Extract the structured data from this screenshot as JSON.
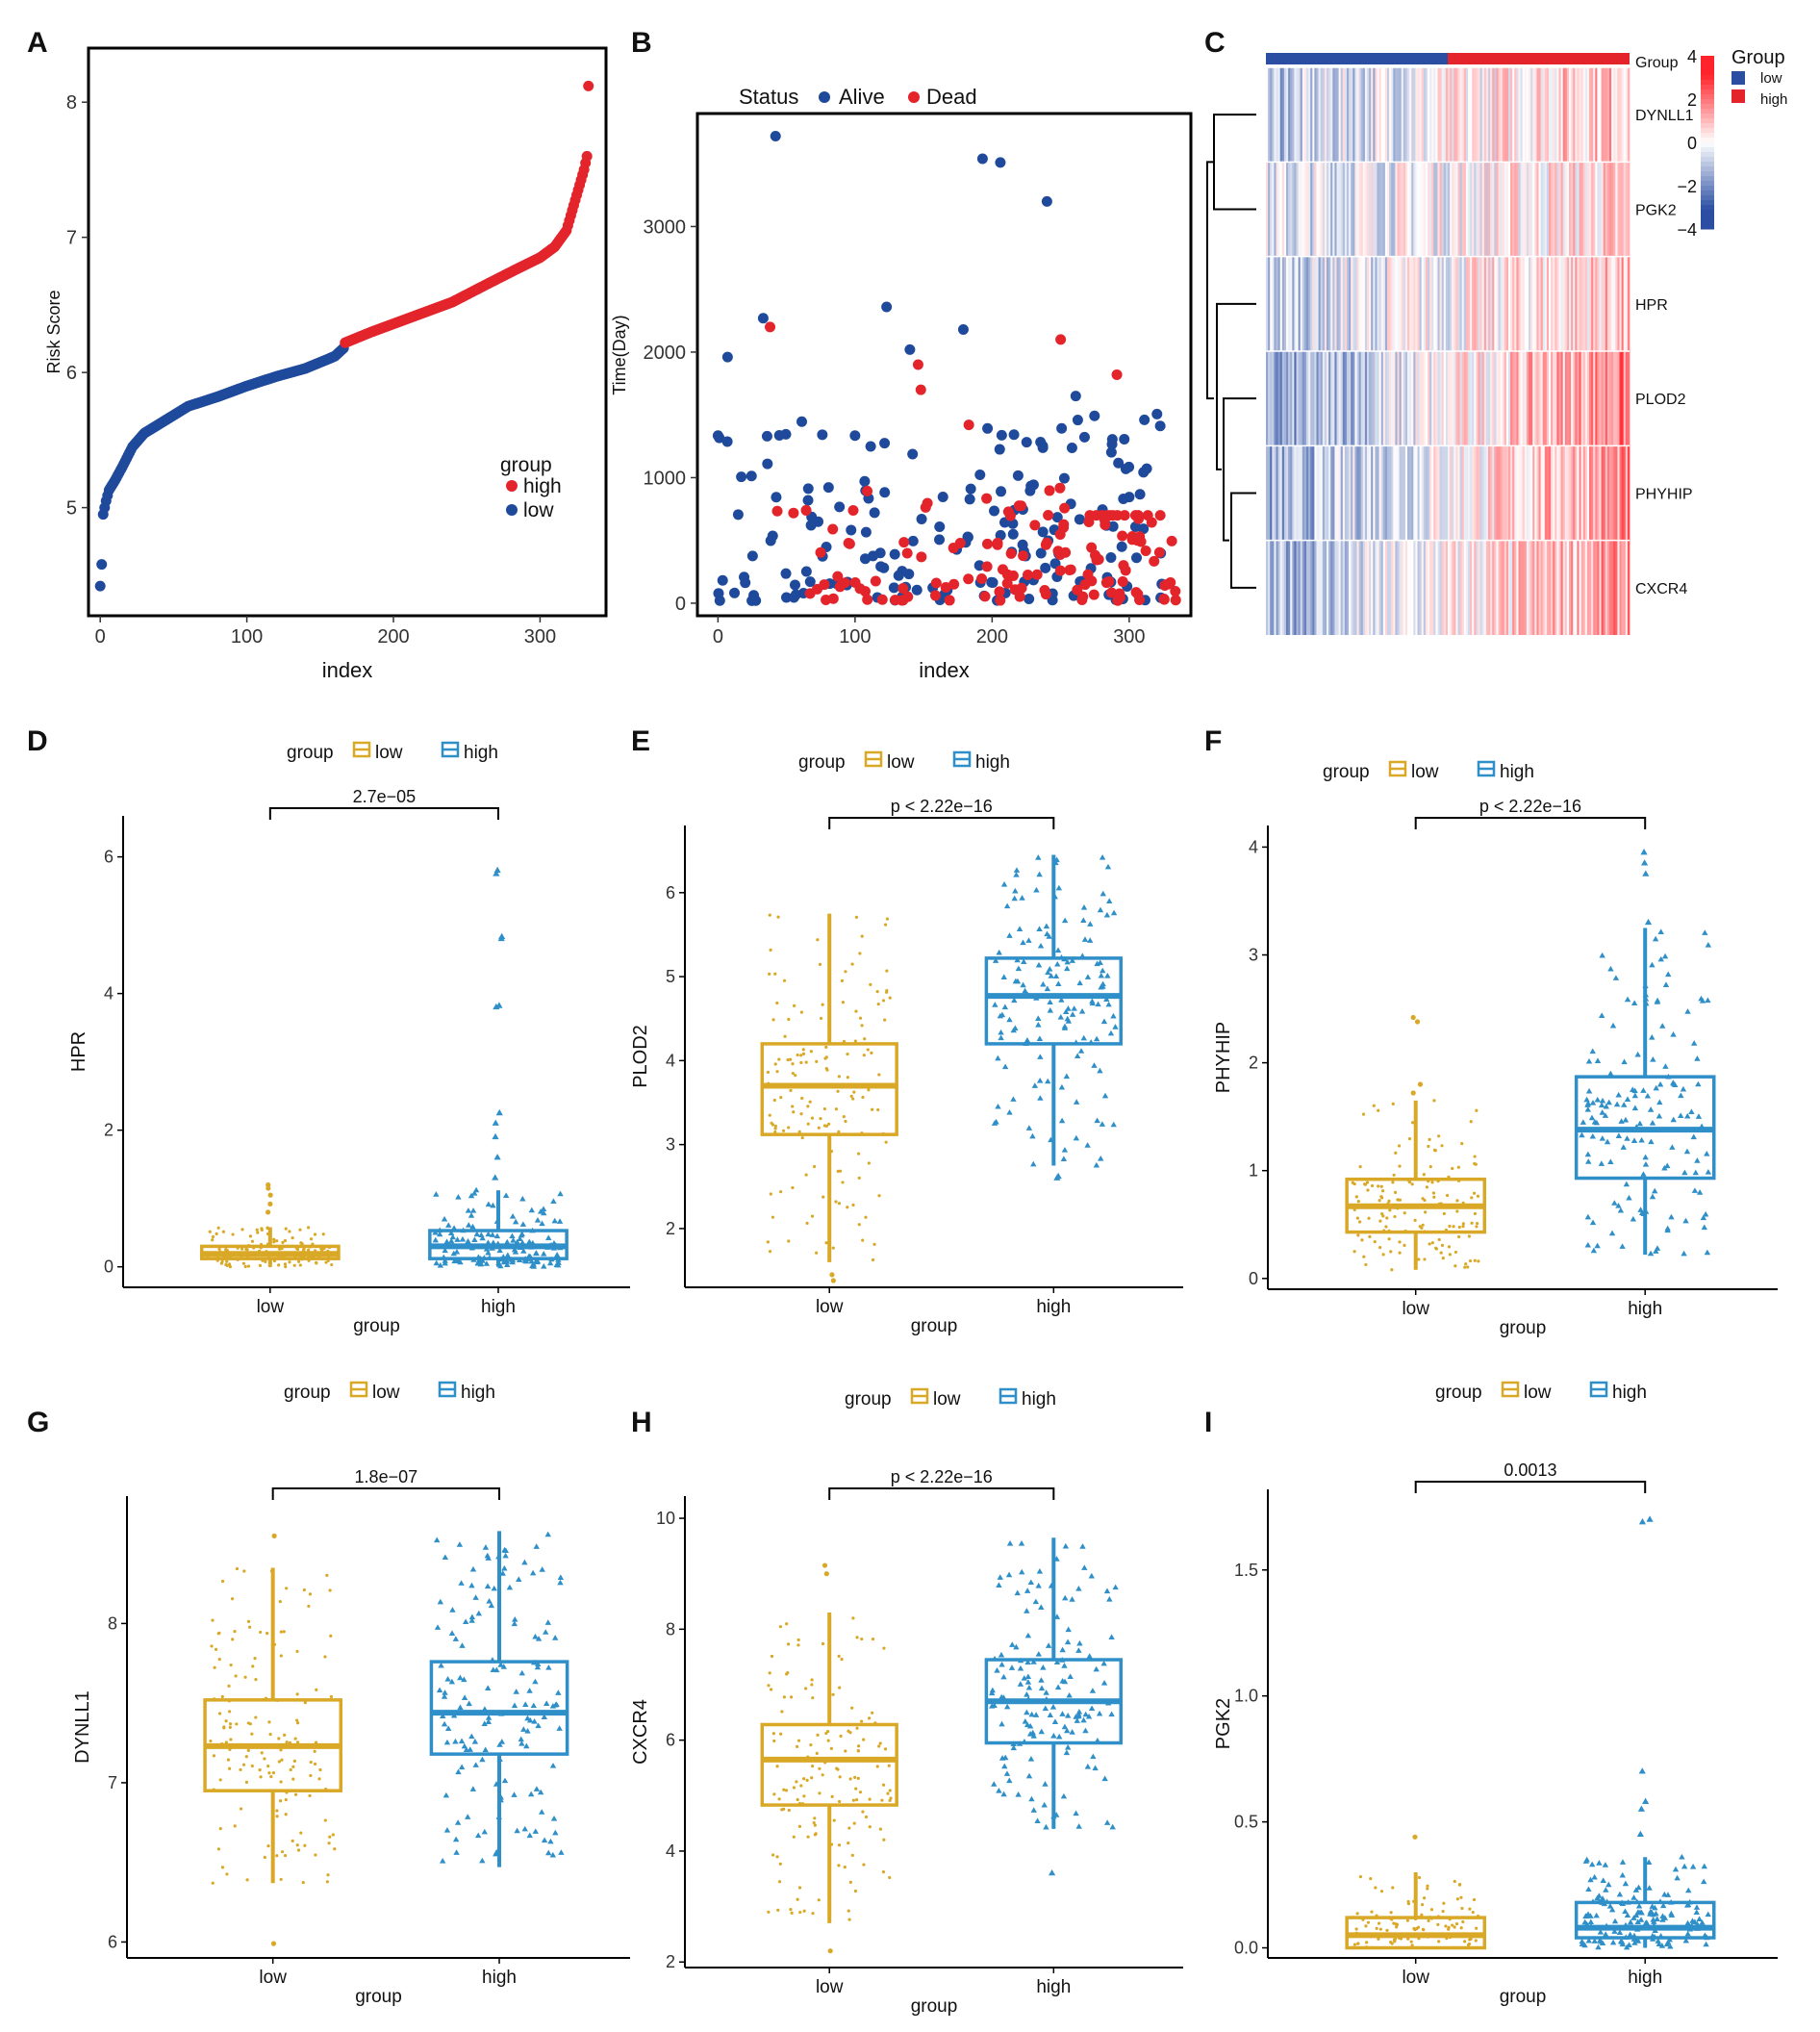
{
  "colors": {
    "risk_low": "#1f4a9c",
    "risk_high": "#e3242b",
    "box_low": "#d9a826",
    "box_high": "#2f8fc8",
    "heat_low": "#2b4ea2",
    "heat_mid": "#ffffff",
    "heat_high": "#e3242b"
  },
  "chart_data": [
    {
      "panel": "A",
      "type": "scatter",
      "xlabel": "index",
      "ylabel": "Risk Score",
      "xlim": [
        -8,
        345
      ],
      "ylim": [
        4.2,
        8.4
      ],
      "xticks": [
        "0",
        "100",
        "200",
        "300"
      ],
      "yticks": [
        "5",
        "6",
        "7",
        "8"
      ],
      "legend": {
        "title": "group",
        "items": [
          "high",
          "low"
        ],
        "position": "right"
      },
      "series": [
        {
          "name": "low",
          "x_range": [
            0,
            166
          ],
          "anchors": [
            [
              0,
              4.42
            ],
            [
              1,
              4.58
            ],
            [
              2,
              4.95
            ],
            [
              4,
              5.05
            ],
            [
              6,
              5.13
            ],
            [
              10,
              5.2
            ],
            [
              15,
              5.3
            ],
            [
              22,
              5.45
            ],
            [
              30,
              5.55
            ],
            [
              45,
              5.65
            ],
            [
              60,
              5.75
            ],
            [
              80,
              5.82
            ],
            [
              100,
              5.9
            ],
            [
              120,
              5.97
            ],
            [
              140,
              6.03
            ],
            [
              160,
              6.12
            ],
            [
              166,
              6.18
            ]
          ]
        },
        {
          "name": "high",
          "x_range": [
            167,
            333
          ],
          "anchors": [
            [
              167,
              6.22
            ],
            [
              185,
              6.3
            ],
            [
              210,
              6.4
            ],
            [
              240,
              6.52
            ],
            [
              265,
              6.66
            ],
            [
              285,
              6.77
            ],
            [
              300,
              6.85
            ],
            [
              310,
              6.93
            ],
            [
              318,
              7.05
            ],
            [
              322,
              7.2
            ],
            [
              326,
              7.35
            ],
            [
              330,
              7.5
            ],
            [
              332,
              7.6
            ],
            [
              333,
              8.12
            ]
          ]
        }
      ]
    },
    {
      "panel": "B",
      "type": "scatter",
      "xlabel": "index",
      "ylabel": "Time(Day)",
      "xlim": [
        -15,
        345
      ],
      "ylim": [
        -100,
        3900
      ],
      "xticks": [
        "0",
        "100",
        "200",
        "300"
      ],
      "yticks": [
        "0",
        "1000",
        "2000",
        "3000"
      ],
      "legend": {
        "title": "Status",
        "items": [
          "Alive",
          "Dead"
        ],
        "position": "top"
      },
      "highlights": [
        {
          "status": "Alive",
          "x": 42,
          "y": 3720
        },
        {
          "status": "Alive",
          "x": 193,
          "y": 3540
        },
        {
          "status": "Alive",
          "x": 206,
          "y": 3510
        },
        {
          "status": "Alive",
          "x": 240,
          "y": 3200
        },
        {
          "status": "Alive",
          "x": 33,
          "y": 2270
        },
        {
          "status": "Dead",
          "x": 38,
          "y": 2200
        },
        {
          "status": "Alive",
          "x": 123,
          "y": 2360
        },
        {
          "status": "Alive",
          "x": 179,
          "y": 2180
        },
        {
          "status": "Dead",
          "x": 250,
          "y": 2100
        },
        {
          "status": "Alive",
          "x": 140,
          "y": 2020
        },
        {
          "status": "Dead",
          "x": 146,
          "y": 1900
        },
        {
          "status": "Dead",
          "x": 148,
          "y": 1700
        },
        {
          "status": "Dead",
          "x": 291,
          "y": 1820
        },
        {
          "status": "Alive",
          "x": 261,
          "y": 1650
        },
        {
          "status": "Alive",
          "x": 7,
          "y": 1960
        },
        {
          "status": "Dead",
          "x": 183,
          "y": 1420
        }
      ],
      "bulk": {
        "alive": 180,
        "dead": 140,
        "range": "0-1700"
      }
    },
    {
      "panel": "C",
      "type": "heatmap",
      "rows": [
        "DYNLL1",
        "PGK2",
        "HPR",
        "PLOD2",
        "PHYHIP",
        "CXCR4"
      ],
      "annotation": {
        "label": "Group",
        "values": [
          "low",
          "high"
        ],
        "split_fraction": 0.5
      },
      "colorbar": {
        "ticks": [
          "4",
          "2",
          "0",
          "−2",
          "−4"
        ],
        "range": [
          -4,
          4
        ]
      },
      "legend": {
        "title": "Group",
        "items": [
          "low",
          "high"
        ]
      },
      "row_trend": [
        1.1,
        0.6,
        0.9,
        1.9,
        1.6,
        1.5
      ]
    },
    {
      "panel": "D",
      "type": "boxplot",
      "ylabel": "HPR",
      "xlabel": "group",
      "categories": [
        "low",
        "high"
      ],
      "yticks": [
        "0",
        "2",
        "4",
        "6"
      ],
      "ylim": [
        -0.3,
        6.6
      ],
      "pvalue": "2.7e−05",
      "legend": {
        "title": "group",
        "items": [
          "low",
          "high"
        ]
      },
      "boxes": [
        {
          "name": "low",
          "q1": 0.12,
          "median": 0.19,
          "q3": 0.3,
          "wlo": 0.0,
          "whi": 0.58,
          "outliers": [
            0.8,
            0.92,
            1.05,
            1.15,
            1.2
          ]
        },
        {
          "name": "high",
          "q1": 0.12,
          "median": 0.3,
          "q3": 0.53,
          "wlo": 0.0,
          "whi": 1.12,
          "outliers": [
            1.3,
            1.6,
            1.9,
            2.1,
            2.25,
            3.8,
            3.82,
            4.8,
            4.83,
            5.75,
            5.8
          ]
        }
      ]
    },
    {
      "panel": "E",
      "type": "boxplot",
      "ylabel": "PLOD2",
      "xlabel": "group",
      "categories": [
        "low",
        "high"
      ],
      "yticks": [
        "2",
        "3",
        "4",
        "5",
        "6"
      ],
      "ylim": [
        1.3,
        6.8
      ],
      "pvalue": "p < 2.22e−16",
      "legend": {
        "title": "group",
        "items": [
          "low",
          "high"
        ]
      },
      "boxes": [
        {
          "name": "low",
          "q1": 3.12,
          "median": 3.7,
          "q3": 4.2,
          "wlo": 1.6,
          "whi": 5.75,
          "outliers": [
            1.38,
            1.45
          ]
        },
        {
          "name": "high",
          "q1": 4.2,
          "median": 4.77,
          "q3": 5.22,
          "wlo": 2.75,
          "whi": 6.45,
          "outliers": [
            2.6,
            2.62
          ]
        }
      ]
    },
    {
      "panel": "F",
      "type": "boxplot",
      "ylabel": "PHYHIP",
      "xlabel": "group",
      "categories": [
        "low",
        "high"
      ],
      "yticks": [
        "0",
        "1",
        "2",
        "3",
        "4"
      ],
      "ylim": [
        -0.1,
        4.2
      ],
      "pvalue": "p < 2.22e−16",
      "legend": {
        "title": "group",
        "items": [
          "low",
          "high"
        ]
      },
      "boxes": [
        {
          "name": "low",
          "q1": 0.43,
          "median": 0.67,
          "q3": 0.92,
          "wlo": 0.08,
          "whi": 1.65,
          "outliers": [
            1.72,
            1.8,
            2.38,
            2.42
          ]
        },
        {
          "name": "high",
          "q1": 0.93,
          "median": 1.38,
          "q3": 1.87,
          "wlo": 0.22,
          "whi": 3.25,
          "outliers": [
            3.3,
            3.75,
            3.85,
            3.95
          ]
        }
      ]
    },
    {
      "panel": "G",
      "type": "boxplot",
      "ylabel": "DYNLL1",
      "xlabel": "group",
      "categories": [
        "low",
        "high"
      ],
      "yticks": [
        "6",
        "7",
        "8"
      ],
      "ylim": [
        5.9,
        8.8
      ],
      "pvalue": "1.8e−07",
      "legend": {
        "title": "group",
        "items": [
          "low",
          "high"
        ]
      },
      "boxes": [
        {
          "name": "low",
          "q1": 6.95,
          "median": 7.23,
          "q3": 7.52,
          "wlo": 6.37,
          "whi": 8.35,
          "outliers": [
            5.99,
            8.55
          ]
        },
        {
          "name": "high",
          "q1": 7.18,
          "median": 7.44,
          "q3": 7.76,
          "wlo": 6.47,
          "whi": 8.58,
          "outliers": []
        }
      ]
    },
    {
      "panel": "H",
      "type": "boxplot",
      "ylabel": "CXCR4",
      "xlabel": "group",
      "categories": [
        "low",
        "high"
      ],
      "yticks": [
        "2",
        "4",
        "6",
        "8",
        "10"
      ],
      "ylim": [
        1.9,
        10.4
      ],
      "pvalue": "p < 2.22e−16",
      "legend": {
        "title": "group",
        "items": [
          "low",
          "high"
        ]
      },
      "boxes": [
        {
          "name": "low",
          "q1": 4.83,
          "median": 5.65,
          "q3": 6.28,
          "wlo": 2.7,
          "whi": 8.3,
          "outliers": [
            2.2,
            9.0,
            9.15
          ]
        },
        {
          "name": "high",
          "q1": 5.95,
          "median": 6.7,
          "q3": 7.45,
          "wlo": 4.4,
          "whi": 9.65,
          "outliers": [
            3.6
          ]
        }
      ]
    },
    {
      "panel": "I",
      "type": "boxplot",
      "ylabel": "PGK2",
      "xlabel": "group",
      "categories": [
        "low",
        "high"
      ],
      "yticks": [
        "0.0",
        "0.5",
        "1.0",
        "1.5"
      ],
      "ylim": [
        -0.04,
        1.82
      ],
      "pvalue": "0.0013",
      "legend": {
        "title": "group",
        "items": [
          "low",
          "high"
        ]
      },
      "boxes": [
        {
          "name": "low",
          "q1": 0.0,
          "median": 0.05,
          "q3": 0.12,
          "wlo": 0.0,
          "whi": 0.3,
          "outliers": [
            0.44
          ]
        },
        {
          "name": "high",
          "q1": 0.04,
          "median": 0.08,
          "q3": 0.18,
          "wlo": 0.0,
          "whi": 0.36,
          "outliers": [
            0.45,
            0.55,
            0.58,
            0.7,
            1.69,
            1.7
          ]
        }
      ]
    }
  ]
}
